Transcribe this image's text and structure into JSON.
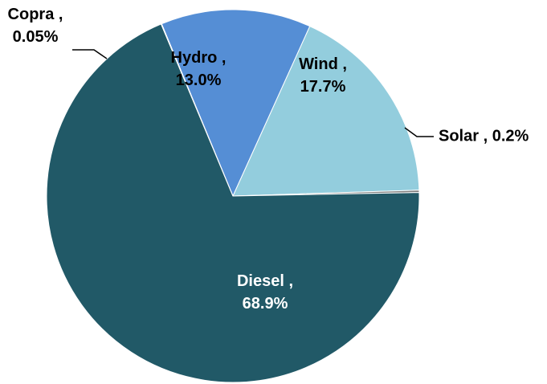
{
  "chart_data": {
    "type": "pie",
    "title": "",
    "slices": [
      {
        "name": "Hydro",
        "value": 13.0,
        "label": "13.0%",
        "color": "#558ed5"
      },
      {
        "name": "Wind",
        "value": 17.7,
        "label": "17.7%",
        "color": "#93cddd"
      },
      {
        "name": "Solar",
        "value": 0.2,
        "label": "0.2%",
        "color": "#7f7f7f"
      },
      {
        "name": "Diesel",
        "value": 68.9,
        "label": "68.9%",
        "color": "#215967"
      },
      {
        "name": "Copra",
        "value": 0.05,
        "label": "0.05%",
        "color": "#4a7ebb"
      }
    ],
    "label_text_colors": {
      "inside_light": "#ffffff",
      "inside_dark": "#000000"
    },
    "legend": "none",
    "label_style": "category , percent"
  }
}
